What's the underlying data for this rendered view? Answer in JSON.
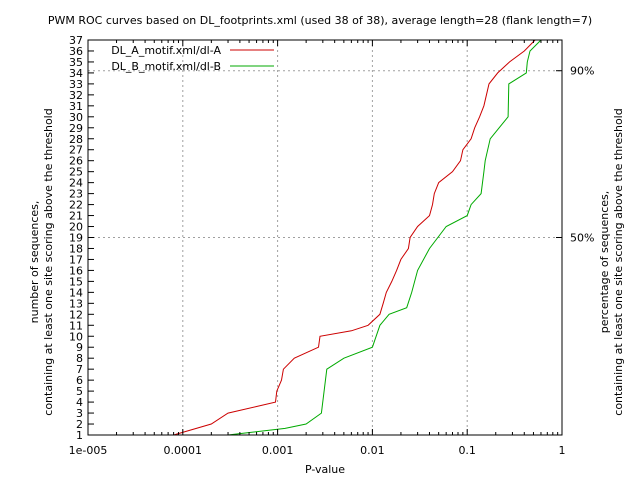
{
  "chart_data": {
    "type": "line",
    "title": "PWM ROC curves based on DL_footprints.xml (used 38 of 38), average length=28 (flank length=7)",
    "xlabel": "P-value",
    "ylabel_line1": "number of sequences,",
    "ylabel_line2": "containing at least one site scoring above the threshold",
    "y2label_line1": "percentage of sequences,",
    "y2label_line2": "containing at least one site scoring above the threshold",
    "x_scale": "log",
    "xlim": [
      1e-05,
      1
    ],
    "x_ticks": [
      {
        "value": 1e-05,
        "label": "1e-005"
      },
      {
        "value": 0.0001,
        "label": "0.0001"
      },
      {
        "value": 0.001,
        "label": "0.001"
      },
      {
        "value": 0.01,
        "label": "0.01"
      },
      {
        "value": 0.1,
        "label": "0.1"
      },
      {
        "value": 1,
        "label": "1"
      }
    ],
    "ylim": [
      1,
      37
    ],
    "y_ticks": [
      1,
      2,
      3,
      4,
      5,
      6,
      7,
      8,
      9,
      10,
      11,
      12,
      13,
      14,
      15,
      16,
      17,
      18,
      19,
      20,
      21,
      22,
      23,
      24,
      25,
      26,
      27,
      28,
      29,
      30,
      31,
      32,
      33,
      34,
      35,
      36,
      37
    ],
    "y2_ticks": [
      {
        "value": 19,
        "label": "50%"
      },
      {
        "value": 34.2,
        "label": "90%"
      }
    ],
    "grid": true,
    "legend_position": "top-left",
    "series": [
      {
        "name": "DL_A_motif.xml/dl-A",
        "color": "#cc0000",
        "points": [
          [
            8e-05,
            1
          ],
          [
            0.0002,
            2
          ],
          [
            0.0003,
            3
          ],
          [
            0.0006,
            3.6
          ],
          [
            0.00095,
            4
          ],
          [
            0.00098,
            5
          ],
          [
            0.0011,
            6
          ],
          [
            0.00115,
            7
          ],
          [
            0.0015,
            8
          ],
          [
            0.0027,
            9
          ],
          [
            0.0028,
            10
          ],
          [
            0.006,
            10.5
          ],
          [
            0.009,
            11
          ],
          [
            0.012,
            12
          ],
          [
            0.013,
            13
          ],
          [
            0.014,
            14
          ],
          [
            0.016,
            15
          ],
          [
            0.018,
            16
          ],
          [
            0.02,
            17
          ],
          [
            0.024,
            18
          ],
          [
            0.025,
            19
          ],
          [
            0.03,
            20
          ],
          [
            0.04,
            21
          ],
          [
            0.043,
            22
          ],
          [
            0.045,
            23
          ],
          [
            0.05,
            24
          ],
          [
            0.07,
            25
          ],
          [
            0.085,
            26
          ],
          [
            0.09,
            27
          ],
          [
            0.11,
            28
          ],
          [
            0.12,
            29
          ],
          [
            0.135,
            30
          ],
          [
            0.15,
            31
          ],
          [
            0.17,
            33
          ],
          [
            0.21,
            34
          ],
          [
            0.28,
            35
          ],
          [
            0.4,
            36
          ],
          [
            0.52,
            37
          ]
        ]
      },
      {
        "name": "DL_B_motif.xml/dl-B",
        "color": "#00aa00",
        "points": [
          [
            0.0003,
            1
          ],
          [
            0.0012,
            1.6
          ],
          [
            0.002,
            2
          ],
          [
            0.0029,
            3
          ],
          [
            0.0033,
            7
          ],
          [
            0.005,
            8
          ],
          [
            0.01,
            9
          ],
          [
            0.012,
            11
          ],
          [
            0.015,
            12
          ],
          [
            0.023,
            12.6
          ],
          [
            0.026,
            14
          ],
          [
            0.03,
            16
          ],
          [
            0.04,
            18
          ],
          [
            0.06,
            20
          ],
          [
            0.1,
            21
          ],
          [
            0.11,
            22
          ],
          [
            0.14,
            23
          ],
          [
            0.15,
            25
          ],
          [
            0.155,
            26
          ],
          [
            0.175,
            28
          ],
          [
            0.27,
            30
          ],
          [
            0.275,
            33
          ],
          [
            0.42,
            34
          ],
          [
            0.43,
            35
          ],
          [
            0.46,
            36
          ],
          [
            0.6,
            37
          ]
        ]
      }
    ]
  }
}
